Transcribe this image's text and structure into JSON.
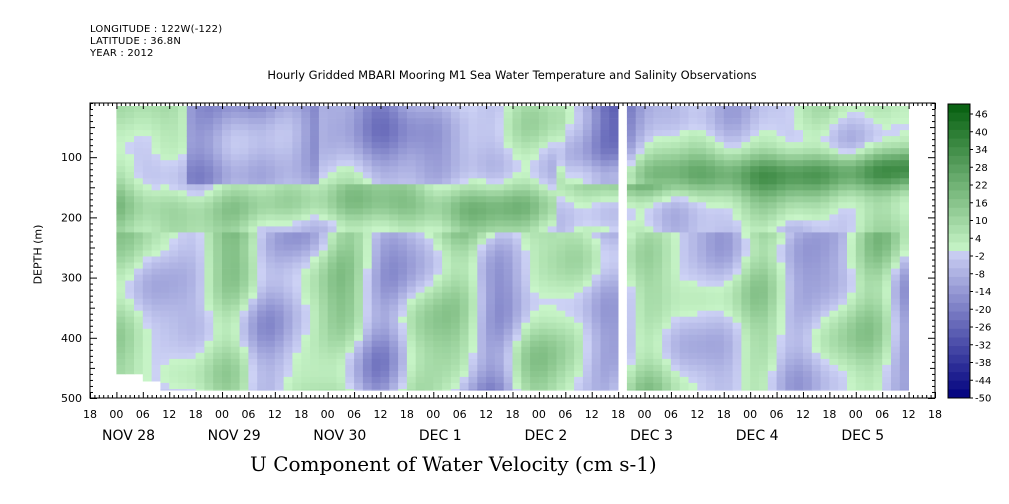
{
  "header": {
    "longitude": "LONGITUDE : 122W(-122)",
    "latitude": "LATITUDE : 36.8N",
    "year": "YEAR : 2012"
  },
  "chart_data": {
    "type": "heatmap",
    "title": "Hourly Gridded MBARI Mooring M1 Sea Water Temperature and Salinity Observations",
    "xlabel": "U Component of Water Velocity (cm s-1)",
    "ylabel": "DEPTH (m)",
    "x_range_hours": [
      -6,
      186
    ],
    "ylim": [
      500,
      10
    ],
    "y_ticks": [
      100,
      200,
      300,
      400,
      500
    ],
    "x_hour_ticks": [
      "18",
      "00",
      "06",
      "12",
      "18",
      "00",
      "06",
      "12",
      "18",
      "00",
      "06",
      "12",
      "18",
      "00",
      "06",
      "12",
      "18",
      "00",
      "06",
      "12",
      "18",
      "00",
      "06",
      "12",
      "18",
      "00",
      "06",
      "12",
      "18",
      "00",
      "06",
      "12",
      "18"
    ],
    "date_labels": [
      "NOV 28",
      "NOV 29",
      "NOV 30",
      "DEC  1",
      "DEC  2",
      "DEC  3",
      "DEC  4",
      "DEC  5"
    ],
    "colorbar_labels": [
      "46",
      "40",
      "34",
      "28",
      "22",
      "16",
      "10",
      "4",
      "-2",
      "-8",
      "-14",
      "-20",
      "-26",
      "-32",
      "-38",
      "-44",
      "-50"
    ],
    "colorbar_range": [
      -50,
      50
    ]
  }
}
